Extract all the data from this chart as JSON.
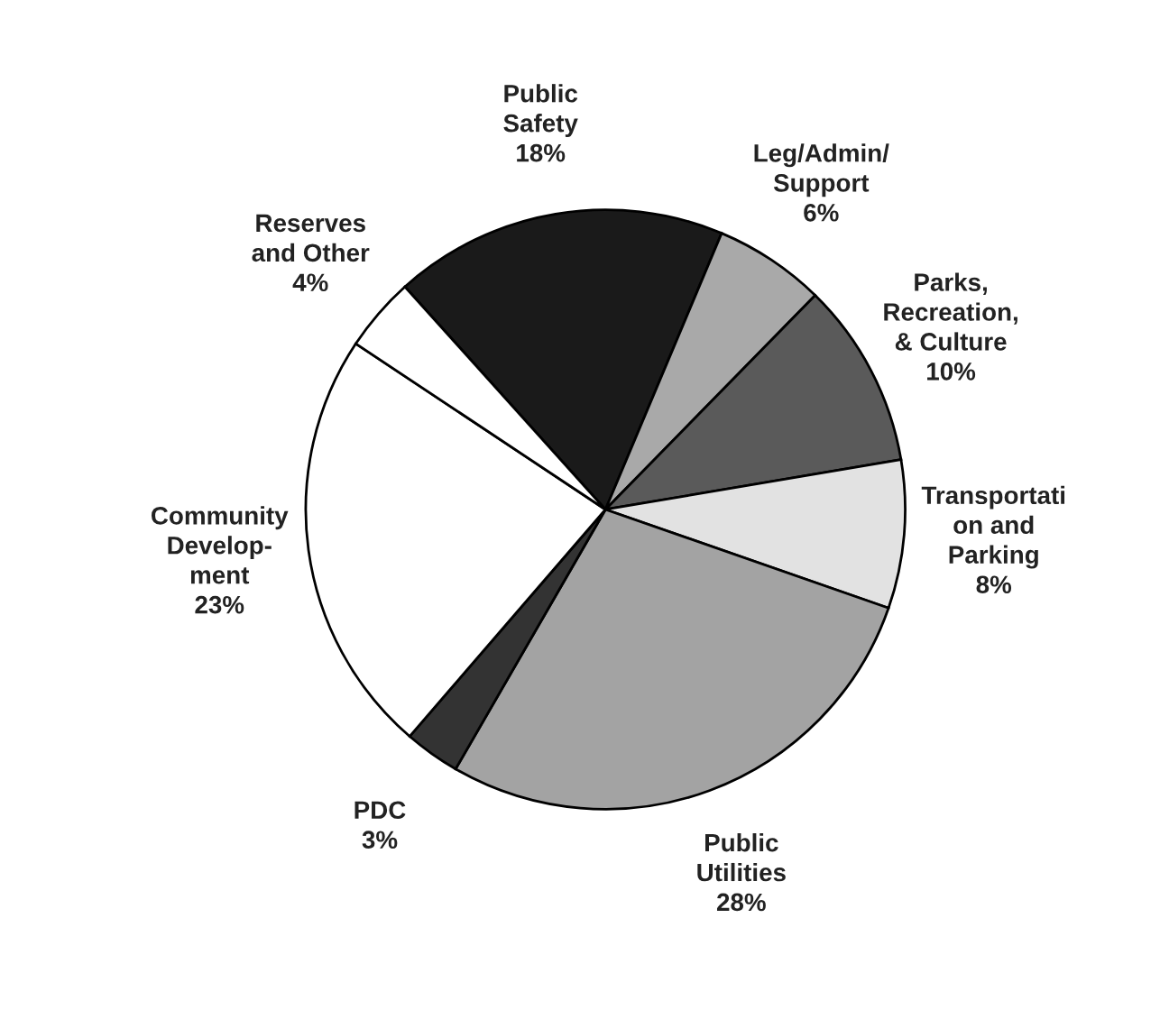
{
  "chart_data": {
    "type": "pie",
    "categories": [
      "Public\nSafety",
      "Leg/Admin/\nSupport",
      "Parks,\nRecreation,\n& Culture",
      "Transportati\non and\nParking",
      "Public\nUtilities",
      "PDC",
      "Community\nDevelop-\nment",
      "Reserves\nand Other"
    ],
    "values": [
      18,
      6,
      10,
      8,
      28,
      3,
      23,
      4
    ],
    "value_labels": [
      "18%",
      "6%",
      "10%",
      "8%",
      "28%",
      "3%",
      "23%",
      "4%"
    ],
    "colors": [
      "#1a1a1a",
      "#a9a9a9",
      "#5a5a5a",
      "#e2e2e2",
      "#a3a3a3",
      "#333333",
      "#ffffff",
      "#ffffff"
    ],
    "legend": false
  }
}
